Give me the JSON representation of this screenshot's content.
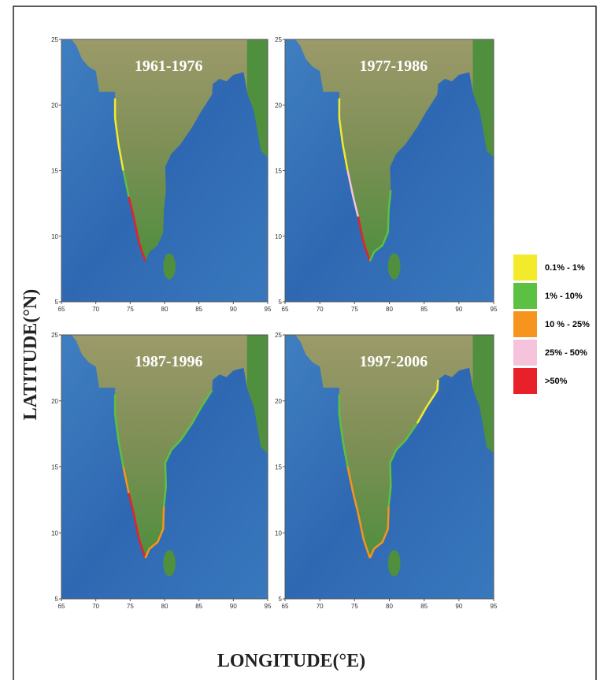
{
  "panels": [
    {
      "title": "1961-1976"
    },
    {
      "title": "1977-1986"
    },
    {
      "title": "1987-1996"
    },
    {
      "title": "1997-2006"
    }
  ],
  "xticks": [
    65,
    70,
    75,
    80,
    85,
    90,
    95
  ],
  "yticks": [
    25,
    20,
    15,
    10,
    5
  ],
  "legend": [
    {
      "label": "0.1% - 1%",
      "color": "#f2ea2b"
    },
    {
      "label": "1% - 10%",
      "color": "#5cc043"
    },
    {
      "label": "10 % - 25%",
      "color": "#f7941d"
    },
    {
      "label": "25% - 50%",
      "color": "#f6c3dd"
    },
    {
      "label": ">50%",
      "color": "#e8202a"
    }
  ],
  "y_axis_label": "LATITUDE(°N)",
  "x_axis_label": "LONGITUDE(°E)"
}
